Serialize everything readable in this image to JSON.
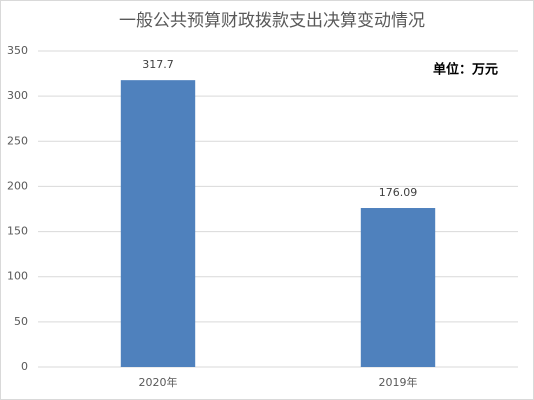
{
  "chart_data": {
    "type": "bar",
    "title": "一般公共预算财政拨款支出决算变动情况",
    "annotation": "单位：万元",
    "categories": [
      "2020年",
      "2019年"
    ],
    "values": [
      317.7,
      176.09
    ],
    "color": "#4f81bd",
    "ylim": [
      0,
      350
    ],
    "yticks": [
      0,
      50,
      100,
      150,
      200,
      250,
      300,
      350
    ],
    "grid": true
  }
}
